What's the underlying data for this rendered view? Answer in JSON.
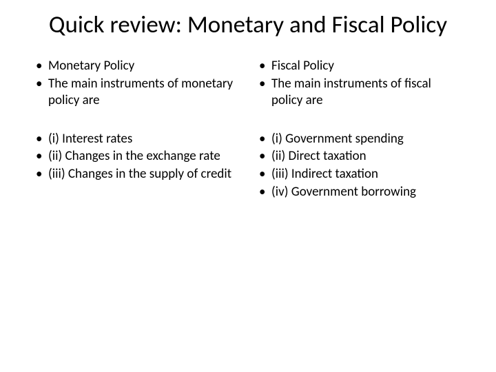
{
  "title": "Quick review: Monetary and Fiscal Policy",
  "left": {
    "group1": [
      "Monetary Policy",
      "The main instruments of monetary policy are"
    ],
    "group2": [
      "(i) Interest rates",
      "(ii) Changes in the exchange rate",
      "(iii) Changes in the supply of credit"
    ]
  },
  "right": {
    "group1": [
      "Fiscal Policy",
      "The main instruments of fiscal policy are"
    ],
    "group2": [
      "(i) Government spending",
      "(ii) Direct taxation",
      "(iii) Indirect taxation",
      "(iv) Government borrowing"
    ]
  },
  "colors": {
    "background": "#ffffff",
    "text": "#000000"
  },
  "fonts": {
    "title_size": 35,
    "body_size": 19,
    "family": "Calibri"
  }
}
